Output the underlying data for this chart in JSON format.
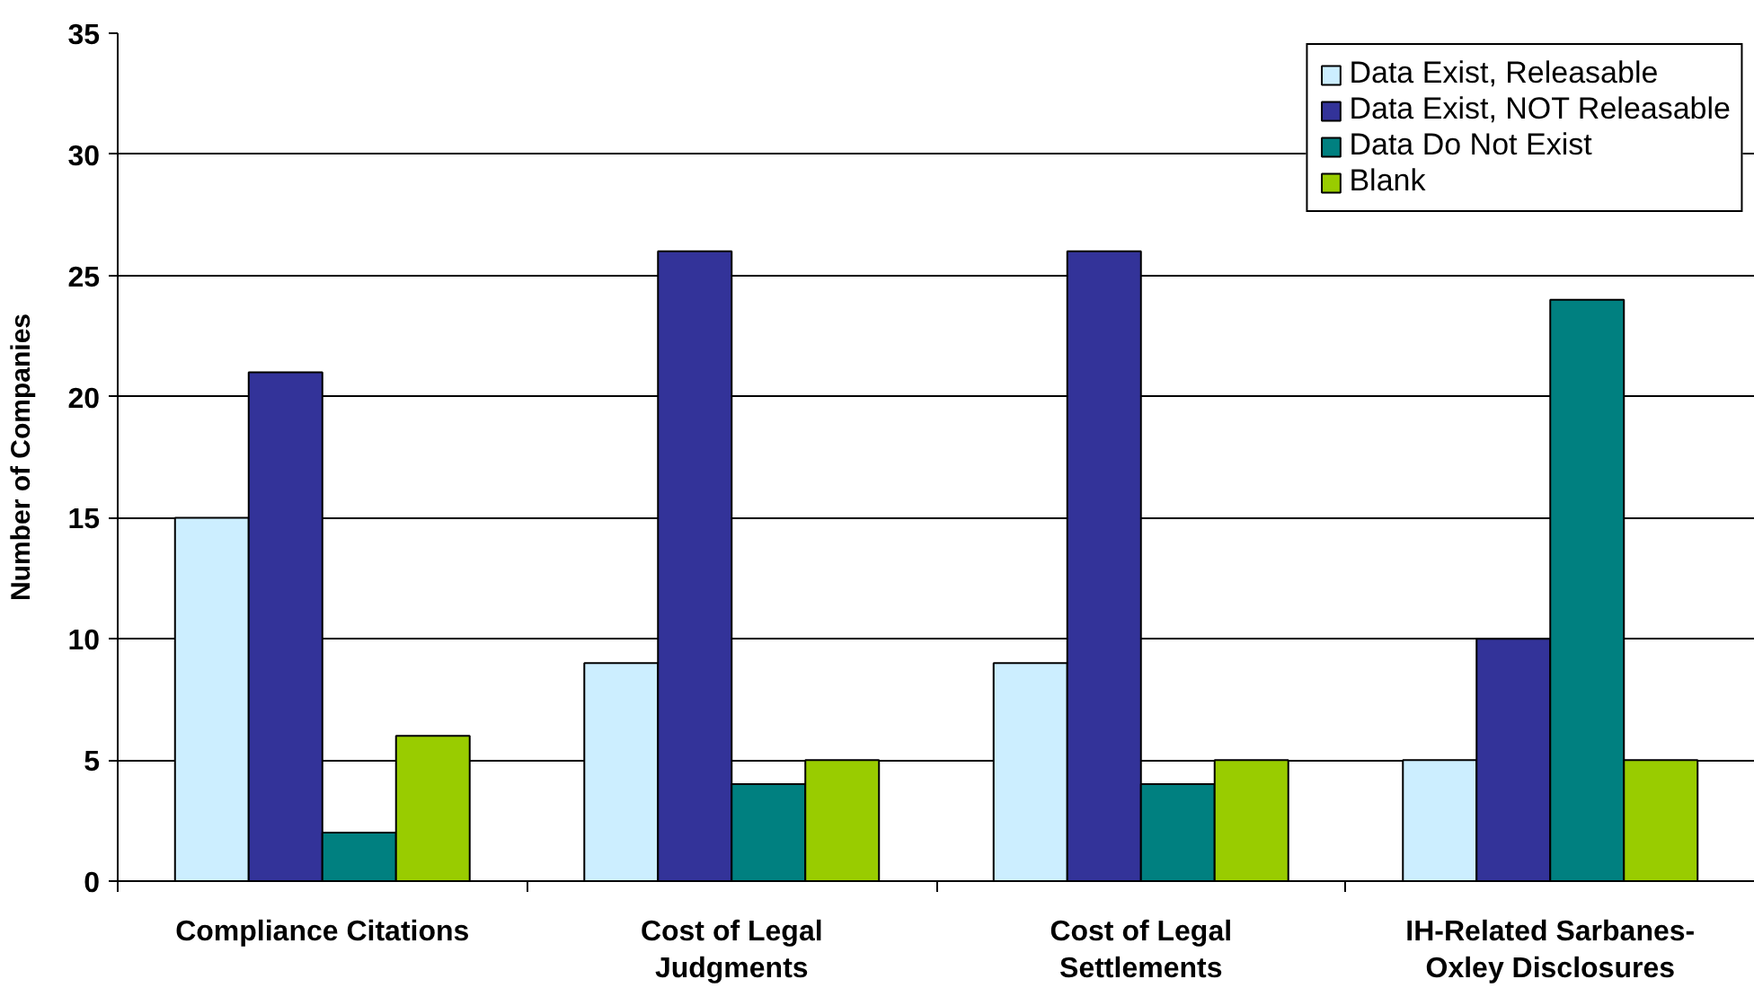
{
  "chart_data": {
    "type": "bar",
    "ylabel": "Number of Companies",
    "categories": [
      "Compliance Citations",
      "Cost of Legal Judgments",
      "Cost of Legal Settlements",
      "IH-Related Sarbanes-Oxley Disclosures"
    ],
    "series": [
      {
        "name": "Data Exist, Releasable",
        "color": "#cceeff",
        "values": [
          15,
          9,
          9,
          5
        ]
      },
      {
        "name": "Data Exist, NOT Releasable",
        "color": "#333399",
        "values": [
          21,
          26,
          26,
          10
        ]
      },
      {
        "name": "Data Do Not Exist",
        "color": "#008080",
        "values": [
          2,
          4,
          4,
          24
        ]
      },
      {
        "name": "Blank",
        "color": "#99cc00",
        "values": [
          6,
          5,
          5,
          5
        ]
      }
    ],
    "ylim": [
      0,
      35
    ],
    "yticks": [
      0,
      5,
      10,
      15,
      20,
      25,
      30,
      35
    ],
    "grid": "y",
    "legend": "top right"
  }
}
